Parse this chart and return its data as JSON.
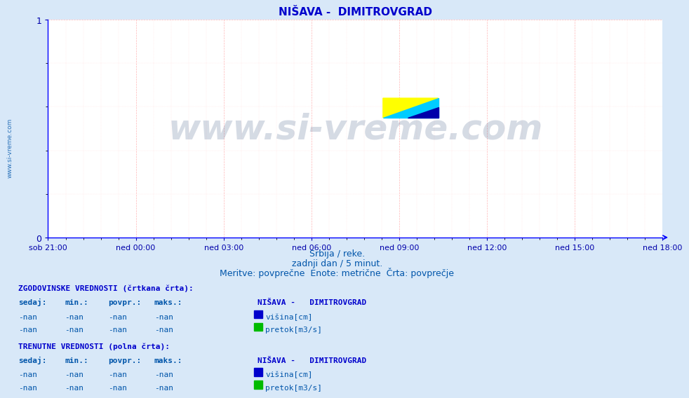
{
  "title": "NIŠAVA -  DIMITROVGRAD",
  "title_color": "#0000cc",
  "bg_color": "#d8e8f8",
  "plot_bg_color": "#ffffff",
  "grid_color_major": "#ff9999",
  "grid_color_minor": "#ffcccc",
  "axis_color": "#0000ff",
  "tick_color": "#0000aa",
  "ylim": [
    0,
    1
  ],
  "yticks": [
    0,
    1
  ],
  "xlabel_ticks": [
    "sob 21:00",
    "ned 00:00",
    "ned 03:00",
    "ned 06:00",
    "ned 09:00",
    "ned 12:00",
    "ned 15:00",
    "ned 18:00"
  ],
  "watermark_text": "www.si-vreme.com",
  "watermark_color": "#1a3a6e",
  "watermark_alpha": 0.18,
  "subtitle1": "Srbija / reke.",
  "subtitle2": "zadnji dan / 5 minut.",
  "subtitle3": "Meritve: povprečne  Enote: metrične  Črta: povprečje",
  "subtitle_color": "#0055aa",
  "side_text": "www.si-vreme.com",
  "side_color": "#0055aa",
  "table_header1": "ZGODOVINSKE VREDNOSTI (črtkana črta):",
  "table_header2": "TRENUTNE VREDNOSTI (polna črta):",
  "table_cols": [
    "sedaj:",
    "min.:",
    "povpr.:",
    "maks.:"
  ],
  "table_station": "NIŠAVA -   DIMITROVGRAD",
  "table_rows": [
    [
      "-nan",
      "-nan",
      "-nan",
      "-nan",
      "višina[cm]",
      "#0000cc"
    ],
    [
      "-nan",
      "-nan",
      "-nan",
      "-nan",
      "pretok[m3/s]",
      "#00bb00"
    ]
  ],
  "logo_yellow": "#ffff00",
  "logo_cyan": "#00ccff",
  "logo_blue": "#0000aa",
  "font_family": "monospace"
}
